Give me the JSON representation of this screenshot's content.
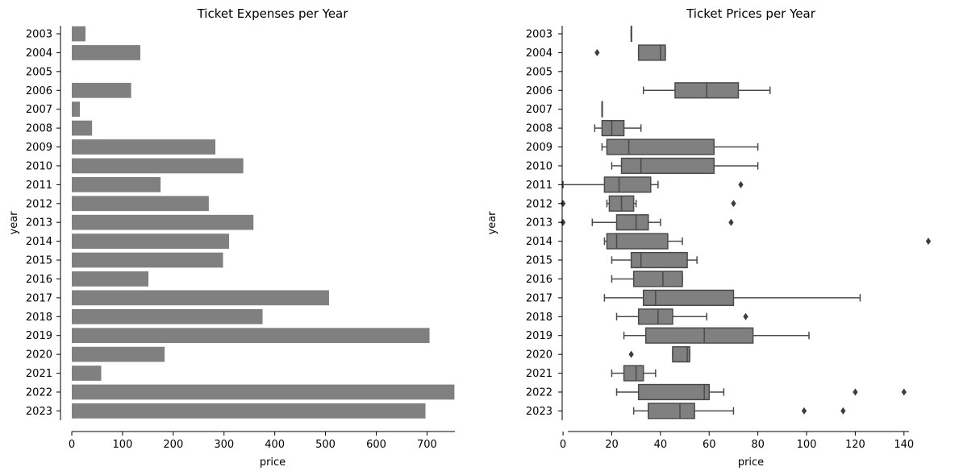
{
  "colors": {
    "bar": "#808080",
    "box": "#808080",
    "box_line": "#4a4a4a",
    "axis": "#000000"
  },
  "chart_data": [
    {
      "type": "bar",
      "orientation": "horizontal",
      "title": "Ticket Expenses per Year",
      "xlabel": "price",
      "ylabel": "year",
      "xlim": [
        0,
        755
      ],
      "xticks": [
        0,
        100,
        200,
        300,
        400,
        500,
        600,
        700
      ],
      "grid": false,
      "categories": [
        "2003",
        "2004",
        "2005",
        "2006",
        "2007",
        "2008",
        "2009",
        "2010",
        "2011",
        "2012",
        "2013",
        "2014",
        "2015",
        "2016",
        "2017",
        "2018",
        "2019",
        "2020",
        "2021",
        "2022",
        "2023"
      ],
      "values": [
        27,
        135,
        0,
        117,
        16,
        40,
        283,
        338,
        175,
        270,
        358,
        310,
        298,
        151,
        507,
        376,
        705,
        183,
        58,
        754,
        697
      ]
    },
    {
      "type": "box",
      "orientation": "horizontal",
      "title": "Ticket Prices per Year",
      "xlabel": "price",
      "ylabel": "year",
      "xlim": [
        -4,
        151
      ],
      "xticks": [
        0,
        20,
        40,
        60,
        80,
        100,
        120,
        140
      ],
      "grid": false,
      "categories": [
        "2003",
        "2004",
        "2005",
        "2006",
        "2007",
        "2008",
        "2009",
        "2010",
        "2011",
        "2012",
        "2013",
        "2014",
        "2015",
        "2016",
        "2017",
        "2018",
        "2019",
        "2020",
        "2021",
        "2022",
        "2023"
      ],
      "boxes": [
        {
          "year": "2003",
          "min": 28,
          "q1": 28,
          "median": 28,
          "q3": 28,
          "max": 28,
          "outliers": []
        },
        {
          "year": "2004",
          "min": 31,
          "q1": 31,
          "median": 40,
          "q3": 42,
          "max": 42,
          "outliers": [
            14
          ]
        },
        null,
        {
          "year": "2006",
          "min": 33,
          "q1": 46,
          "median": 59,
          "q3": 72,
          "max": 85,
          "outliers": []
        },
        {
          "year": "2007",
          "min": 16,
          "q1": 16,
          "median": 16,
          "q3": 16,
          "max": 16,
          "outliers": []
        },
        {
          "year": "2008",
          "min": 13,
          "q1": 16,
          "median": 20,
          "q3": 25,
          "max": 32,
          "outliers": []
        },
        {
          "year": "2009",
          "min": 16,
          "q1": 18,
          "median": 27,
          "q3": 62,
          "max": 80,
          "outliers": []
        },
        {
          "year": "2010",
          "min": 20,
          "q1": 24,
          "median": 32,
          "q3": 62,
          "max": 80,
          "outliers": []
        },
        {
          "year": "2011",
          "min": 0,
          "q1": 17,
          "median": 23,
          "q3": 36,
          "max": 39,
          "outliers": [
            73
          ]
        },
        {
          "year": "2012",
          "min": 18,
          "q1": 19,
          "median": 24,
          "q3": 29,
          "max": 30,
          "outliers": [
            0,
            70
          ]
        },
        {
          "year": "2013",
          "min": 12,
          "q1": 22,
          "median": 30,
          "q3": 35,
          "max": 40,
          "outliers": [
            0,
            69
          ]
        },
        {
          "year": "2014",
          "min": 17,
          "q1": 18,
          "median": 22,
          "q3": 43,
          "max": 49,
          "outliers": [
            150
          ]
        },
        {
          "year": "2015",
          "min": 20,
          "q1": 28,
          "median": 32,
          "q3": 51,
          "max": 55,
          "outliers": []
        },
        {
          "year": "2016",
          "min": 20,
          "q1": 29,
          "median": 41,
          "q3": 49,
          "max": 49,
          "outliers": []
        },
        {
          "year": "2017",
          "min": 17,
          "q1": 33,
          "median": 38,
          "q3": 70,
          "max": 122,
          "outliers": []
        },
        {
          "year": "2018",
          "min": 22,
          "q1": 31,
          "median": 39,
          "q3": 45,
          "max": 59,
          "outliers": [
            75
          ]
        },
        {
          "year": "2019",
          "min": 25,
          "q1": 34,
          "median": 58,
          "q3": 78,
          "max": 101,
          "outliers": []
        },
        {
          "year": "2020",
          "min": 45,
          "q1": 45,
          "median": 51,
          "q3": 52,
          "max": 52,
          "outliers": [
            28
          ]
        },
        {
          "year": "2021",
          "min": 20,
          "q1": 25,
          "median": 30,
          "q3": 33,
          "max": 38,
          "outliers": []
        },
        {
          "year": "2022",
          "min": 22,
          "q1": 31,
          "median": 58,
          "q3": 60,
          "max": 66,
          "outliers": [
            120,
            140
          ]
        },
        {
          "year": "2023",
          "min": 29,
          "q1": 35,
          "median": 48,
          "q3": 54,
          "max": 70,
          "outliers": [
            99,
            115
          ]
        }
      ]
    }
  ]
}
